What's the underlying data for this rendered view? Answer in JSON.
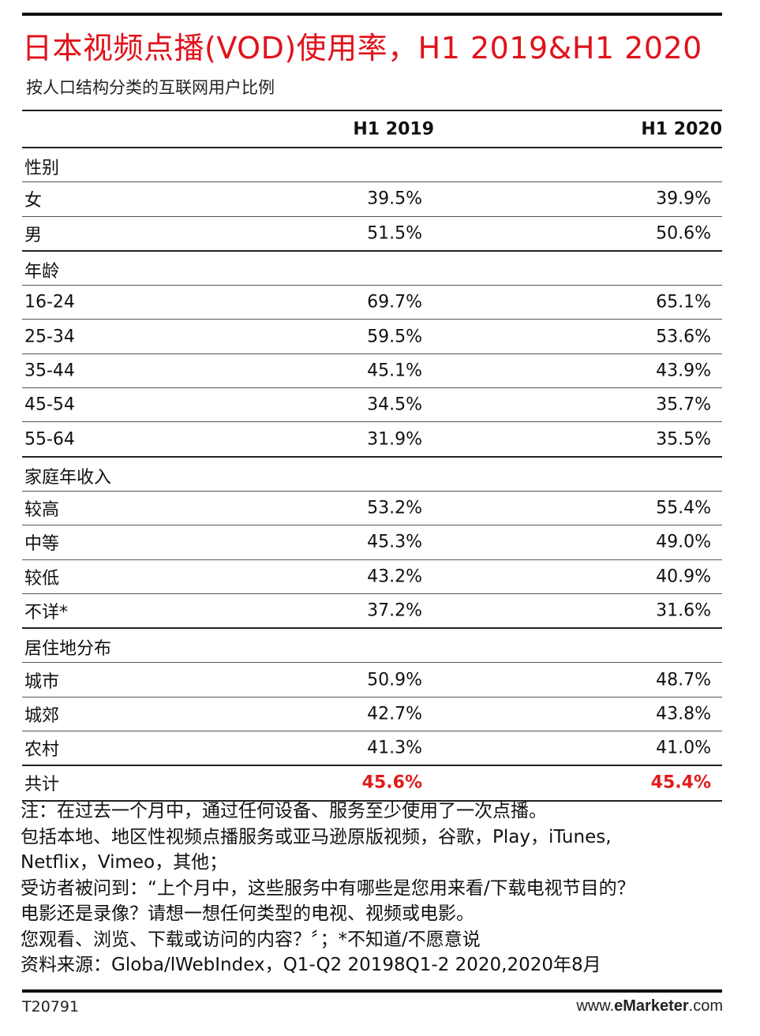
{
  "title": "日本视频点播(VOD)使用率，H1 2019&H1 2020",
  "subtitle": "按人口结构分类的互联网用户比例",
  "columns": [
    "H1 2019",
    "H1 2020"
  ],
  "colors": {
    "title": "#e0121b",
    "total": "#e01b1b",
    "rules": "#222222"
  },
  "rows": [
    {
      "label": "性别",
      "v1": "",
      "v2": ""
    },
    {
      "label": "女",
      "v1": "39.5%",
      "v2": "39.9%"
    },
    {
      "label": "男",
      "v1": "51.5%",
      "v2": "50.6%"
    },
    {
      "label": "年龄",
      "v1": "",
      "v2": ""
    },
    {
      "label": "16-24",
      "v1": "69.7%",
      "v2": "65.1%"
    },
    {
      "label": "25-34",
      "v1": "59.5%",
      "v2": "53.6%"
    },
    {
      "label": "35-44",
      "v1": "45.1%",
      "v2": "43.9%"
    },
    {
      "label": "45-54",
      "v1": "34.5%",
      "v2": "35.7%"
    },
    {
      "label": "55-64",
      "v1": "31.9%",
      "v2": "35.5%"
    },
    {
      "label": "家庭年收入",
      "v1": "",
      "v2": ""
    },
    {
      "label": "较高",
      "v1": "53.2%",
      "v2": "55.4%"
    },
    {
      "label": "中等",
      "v1": "45.3%",
      "v2": "49.0%"
    },
    {
      "label": "较低",
      "v1": "43.2%",
      "v2": "40.9%"
    },
    {
      "label": "不详*",
      "v1": "37.2%",
      "v2": "31.6%"
    },
    {
      "label": "居住地分布",
      "v1": "",
      "v2": ""
    },
    {
      "label": "城市",
      "v1": "50.9%",
      "v2": "48.7%"
    },
    {
      "label": "城郊",
      "v1": "42.7%",
      "v2": "43.8%"
    },
    {
      "label": "农村",
      "v1": "41.3%",
      "v2": "41.0%"
    },
    {
      "label": "共计",
      "v1": "45.6%",
      "v2": "45.4%"
    }
  ],
  "notes": [
    "注：在过去一个月中，通过任何设备、服务至少使用了一次点播。",
    "包括本地、地区性视频点播服务或亚马逊原版视频，谷歌，Play，iTunes,",
    "Netflix，Vimeo，其他；",
    "受访者被问到：“上个月中，这些服务中有哪些是您用来看/下载电视节目的？",
    "电影还是录像？请想一想任何类型的电视、视频或电影。",
    "您观看、浏览、下载或访问的内容？〞；*不知道/不愿意说",
    "资料来源：Globa/lWebIndex，Q1-Q2 20198Q1-2 2020,2020年8月"
  ],
  "footer": {
    "id": "T20791",
    "site_prefix": "www.",
    "site_brand": "eMarketer",
    "site_suffix": ".com"
  },
  "chart_data": {
    "type": "table",
    "title": "日本视频点播(VOD)使用率，H1 2019&H1 2020",
    "subtitle": "按人口结构分类的互联网用户比例",
    "columns": [
      "",
      "H1 2019",
      "H1 2020"
    ],
    "groups": [
      {
        "name": "性别",
        "rows": [
          [
            "女",
            "39.5%",
            "39.9%"
          ],
          [
            "男",
            "51.5%",
            "50.6%"
          ]
        ]
      },
      {
        "name": "年龄",
        "rows": [
          [
            "16-24",
            "69.7%",
            "65.1%"
          ],
          [
            "25-34",
            "59.5%",
            "53.6%"
          ],
          [
            "35-44",
            "45.1%",
            "43.9%"
          ],
          [
            "45-54",
            "34.5%",
            "35.7%"
          ],
          [
            "55-64",
            "31.9%",
            "35.5%"
          ]
        ]
      },
      {
        "name": "家庭年收入",
        "rows": [
          [
            "较高",
            "53.2%",
            "55.4%"
          ],
          [
            "中等",
            "45.3%",
            "49.0%"
          ],
          [
            "较低",
            "43.2%",
            "40.9%"
          ],
          [
            "不详*",
            "37.2%",
            "31.6%"
          ]
        ]
      },
      {
        "name": "居住地分布",
        "rows": [
          [
            "城市",
            "50.9%",
            "48.7%"
          ],
          [
            "城郊",
            "42.7%",
            "43.8%"
          ],
          [
            "农村",
            "41.3%",
            "41.0%"
          ]
        ]
      }
    ],
    "total": [
      "共计",
      "45.6%",
      "45.4%"
    ]
  }
}
